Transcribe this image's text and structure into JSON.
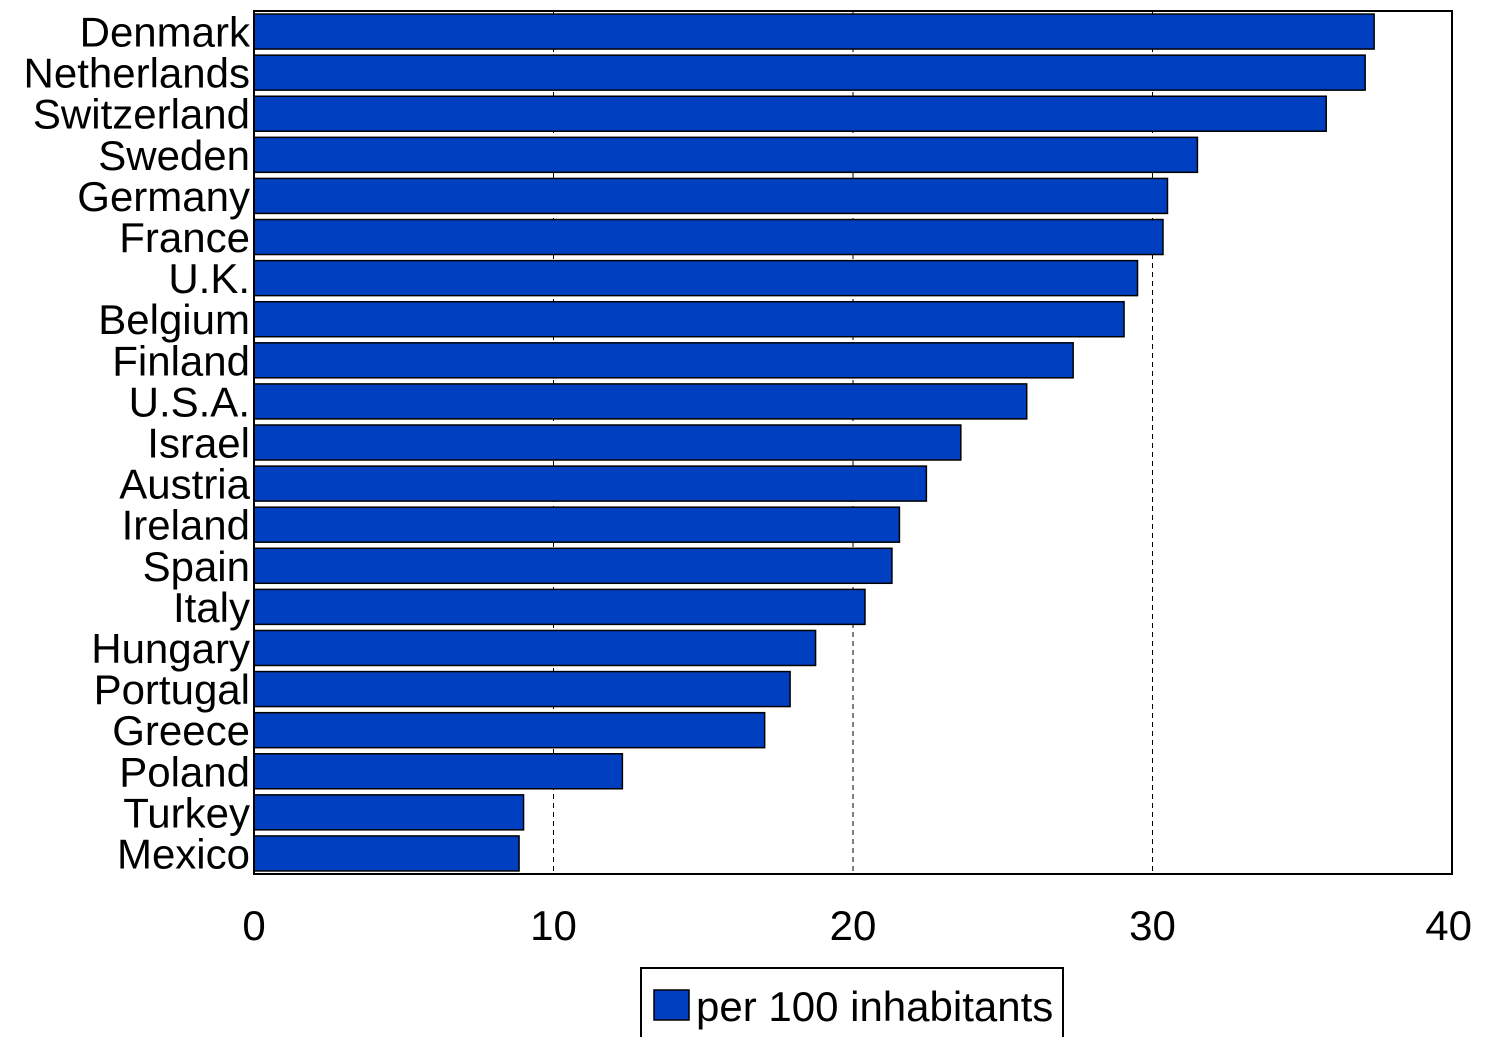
{
  "chart_data": {
    "type": "bar",
    "orientation": "horizontal",
    "categories": [
      "Denmark",
      "Netherlands",
      "Switzerland",
      "Sweden",
      "Germany",
      "France",
      "U.K.",
      "Belgium",
      "Finland",
      "U.S.A.",
      "Israel",
      "Austria",
      "Ireland",
      "Spain",
      "Italy",
      "Hungary",
      "Portugal",
      "Greece",
      "Poland",
      "Turkey",
      "Mexico"
    ],
    "series": [
      {
        "name": "per 100 inhabitants",
        "color": "#0040C0",
        "values": [
          37.4,
          37.1,
          35.8,
          31.5,
          30.5,
          30.35,
          29.5,
          29.05,
          27.35,
          25.8,
          23.6,
          22.45,
          21.55,
          21.3,
          20.4,
          18.75,
          17.9,
          17.05,
          12.3,
          9.0,
          8.85
        ]
      }
    ],
    "xlim": [
      0,
      40
    ],
    "xticks": [
      "0",
      "10",
      "20",
      "30",
      "40"
    ],
    "grid": "vertical dashed",
    "legend": "bottom",
    "title": "",
    "xlabel": "",
    "ylabel": ""
  }
}
